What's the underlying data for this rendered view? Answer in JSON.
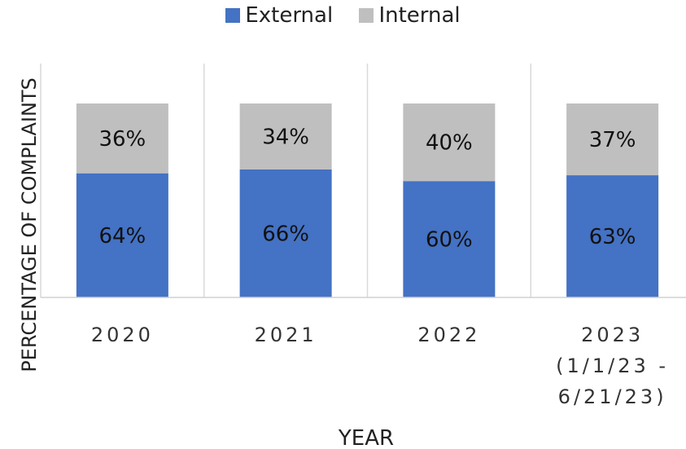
{
  "chart_data": {
    "type": "bar",
    "stacked": true,
    "title": "",
    "xlabel": "YEAR",
    "ylabel": "PERCENTAGE OF COMPLAINTS",
    "categories": [
      [
        "2020"
      ],
      [
        "2021"
      ],
      [
        "2022"
      ],
      [
        "2023",
        "(1/1/23 -",
        "6/21/23)"
      ]
    ],
    "series": [
      {
        "name": "External",
        "color": "#4472C4",
        "values": [
          64,
          66,
          60,
          63
        ]
      },
      {
        "name": "Internal",
        "color": "#BFBFBF",
        "values": [
          36,
          34,
          40,
          37
        ]
      }
    ],
    "data_labels": [
      [
        "64%",
        "66%",
        "60%",
        "63%"
      ],
      [
        "36%",
        "34%",
        "40%",
        "37%"
      ]
    ],
    "ylim": [
      0,
      100
    ],
    "grid": false,
    "category_separators": true,
    "legend_position": "top"
  }
}
